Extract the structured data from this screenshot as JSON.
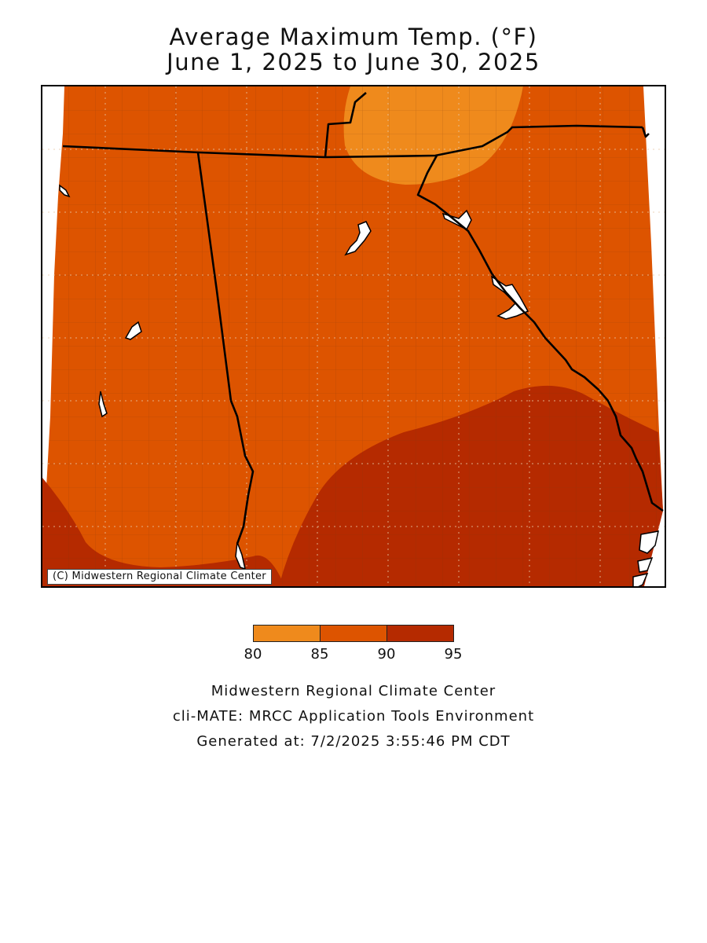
{
  "title": {
    "line1": "Average Maximum Temp. (°F)",
    "line2": "June 1, 2025 to June 30, 2025"
  },
  "map": {
    "credit": "(C) Midwestern Regional Climate Center",
    "zones": [
      {
        "range": "85-90",
        "color": "#DD5400"
      },
      {
        "range": "80-85",
        "color": "#EF8A1C"
      },
      {
        "range": "90-95",
        "color": "#B52A00"
      }
    ]
  },
  "legend": {
    "swatches": [
      {
        "range": "80-85",
        "color": "#EF8A1C"
      },
      {
        "range": "85-90",
        "color": "#DD5400"
      },
      {
        "range": "90-95",
        "color": "#B52A00"
      }
    ],
    "ticks": [
      "80",
      "85",
      "90",
      "95"
    ]
  },
  "footer": {
    "line1": "Midwestern Regional Climate Center",
    "line2": "cli-MATE: MRCC Application Tools Environment",
    "line3": "Generated at: 7/2/2025 3:55:46 PM CDT"
  }
}
